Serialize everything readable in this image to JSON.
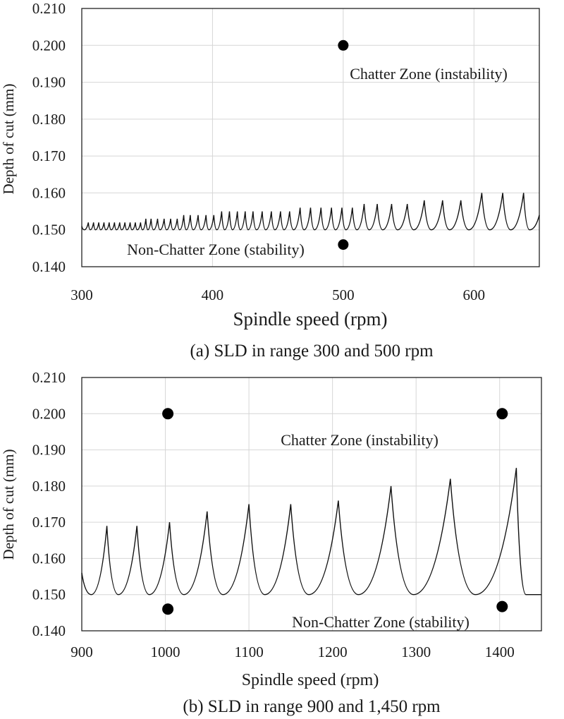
{
  "chart_data": [
    {
      "type": "line",
      "panel": "a",
      "caption": "(a) SLD in range 300 and 500 rpm",
      "xlabel": "Spindle speed (rpm)",
      "ylabel": "Depth of cut (mm)",
      "xlim": [
        300,
        650
      ],
      "ylim": [
        0.14,
        0.21
      ],
      "xticks": [
        300,
        400,
        500,
        600
      ],
      "xtick_labels": [
        "300",
        "400",
        "500",
        "600"
      ],
      "yticks": [
        0.14,
        0.15,
        0.16,
        0.17,
        0.18,
        0.19,
        0.2,
        0.21
      ],
      "ytick_labels": [
        "0.140",
        "0.150",
        "0.160",
        "0.170",
        "0.180",
        "0.190",
        "0.200",
        "0.210"
      ],
      "grid": true,
      "series": [
        {
          "name": "stability lobes",
          "floor": 0.15,
          "peaks": [
            [
              305,
              0.152
            ],
            [
              309,
              0.152
            ],
            [
              313,
              0.152
            ],
            [
              317,
              0.152
            ],
            [
              321,
              0.152
            ],
            [
              325,
              0.152
            ],
            [
              329,
              0.152
            ],
            [
              333,
              0.152
            ],
            [
              337,
              0.152
            ],
            [
              341,
              0.152
            ],
            [
              345,
              0.152
            ],
            [
              349,
              0.153
            ],
            [
              353,
              0.153
            ],
            [
              358,
              0.153
            ],
            [
              363,
              0.153
            ],
            [
              368,
              0.153
            ],
            [
              373,
              0.153
            ],
            [
              378,
              0.154
            ],
            [
              383,
              0.154
            ],
            [
              389,
              0.154
            ],
            [
              395,
              0.154
            ],
            [
              401,
              0.154
            ],
            [
              407,
              0.155
            ],
            [
              413,
              0.155
            ],
            [
              419,
              0.155
            ],
            [
              425,
              0.155
            ],
            [
              431,
              0.155
            ],
            [
              438,
              0.155
            ],
            [
              445,
              0.155
            ],
            [
              452,
              0.155
            ],
            [
              459,
              0.155
            ],
            [
              467,
              0.156
            ],
            [
              475,
              0.156
            ],
            [
              483,
              0.156
            ],
            [
              491,
              0.156
            ],
            [
              499,
              0.156
            ],
            [
              507,
              0.156
            ],
            [
              516,
              0.157
            ],
            [
              526,
              0.157
            ],
            [
              537,
              0.157
            ],
            [
              549,
              0.157
            ],
            [
              562,
              0.158
            ],
            [
              576,
              0.158
            ],
            [
              590,
              0.158
            ],
            [
              606,
              0.16
            ],
            [
              622,
              0.16
            ],
            [
              638,
              0.16
            ]
          ]
        }
      ],
      "points": [
        {
          "x": 500,
          "y": 0.2,
          "zone": "chatter"
        },
        {
          "x": 500,
          "y": 0.146,
          "zone": "non-chatter"
        }
      ],
      "annotations": [
        {
          "text": "Chatter Zone (instability)",
          "x": 500,
          "y": 0.193
        },
        {
          "text": "Non-Chatter Zone (stability)",
          "x": 433,
          "y": 0.145
        }
      ]
    },
    {
      "type": "line",
      "panel": "b",
      "caption": "(b) SLD in range 900 and 1,450 rpm",
      "xlabel": "Spindle speed (rpm)",
      "ylabel": "Depth of cut (mm)",
      "xlim": [
        900,
        1450
      ],
      "ylim": [
        0.14,
        0.21
      ],
      "xticks": [
        900,
        1000,
        1100,
        1200,
        1300,
        1400
      ],
      "xtick_labels": [
        "900",
        "1000",
        "1100",
        "1200",
        "1300",
        "1400"
      ],
      "yticks": [
        0.14,
        0.15,
        0.16,
        0.17,
        0.18,
        0.19,
        0.2,
        0.21
      ],
      "ytick_labels": [
        "0.140",
        "0.150",
        "0.160",
        "0.170",
        "0.180",
        "0.190",
        "0.200",
        "0.210"
      ],
      "grid": true,
      "series": [
        {
          "name": "stability lobes",
          "floor": 0.15,
          "start": [
            900,
            0.156
          ],
          "end": [
            1450,
            0.15
          ],
          "peaks": [
            [
              930,
              0.169
            ],
            [
              966,
              0.169
            ],
            [
              1005,
              0.17
            ],
            [
              1050,
              0.173
            ],
            [
              1100,
              0.175
            ],
            [
              1150,
              0.175
            ],
            [
              1207,
              0.176
            ],
            [
              1270,
              0.18
            ],
            [
              1341,
              0.182
            ],
            [
              1420,
              0.185
            ]
          ]
        }
      ],
      "points": [
        {
          "x": 1003,
          "y": 0.2,
          "zone": "chatter"
        },
        {
          "x": 1403,
          "y": 0.2,
          "zone": "chatter"
        },
        {
          "x": 1003,
          "y": 0.146,
          "zone": "non-chatter"
        },
        {
          "x": 1403,
          "y": 0.1467,
          "zone": "non-chatter"
        }
      ],
      "annotations": [
        {
          "text": "Chatter Zone (instability)",
          "x": 1207,
          "y": 0.1945
        },
        {
          "text": "Non-Chatter Zone (stability)",
          "x": 1300,
          "y": 0.143
        }
      ]
    }
  ]
}
